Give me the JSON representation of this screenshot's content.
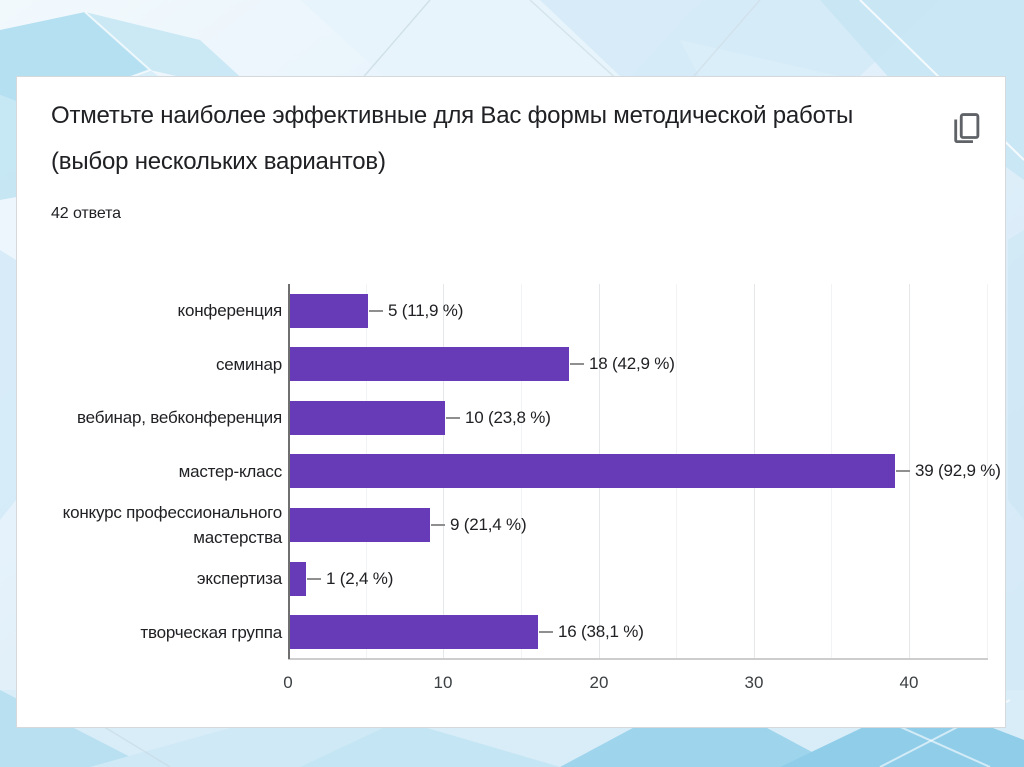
{
  "card": {
    "title": "Отметьте наиболее эффективные для Вас формы методической работы (выбор нескольких вариантов)",
    "responses_label": "42 ответа",
    "copy_icon": "content-copy-icon"
  },
  "chart_data": {
    "type": "bar",
    "orientation": "horizontal",
    "title": "Отметьте наиболее эффективные для Вас формы методической работы (выбор нескольких вариантов)",
    "subtitle": "42 ответа",
    "categories": [
      "конференция",
      "семинар",
      "вебинар, вебконференция",
      "мастер-класс",
      "конкурс профессионального мастерства",
      "экспертиза",
      "творческая группа"
    ],
    "values": [
      5,
      18,
      10,
      39,
      9,
      1,
      16
    ],
    "value_labels": [
      "5 (11,9 %)",
      "18 (42,9 %)",
      "10 (23,8 %)",
      "39 (92,9 %)",
      "9 (21,4 %)",
      "1 (2,4 %)",
      "16 (38,1 %)"
    ],
    "xlabel": "",
    "ylabel": "",
    "x_ticks": [
      0,
      10,
      20,
      30,
      40
    ],
    "xlim": [
      0,
      45
    ],
    "grid": true,
    "legend": "none",
    "bar_color": "#673ab7"
  },
  "colors": {
    "bar": "#673ab7",
    "card_border": "#d6d9db",
    "text": "#202124",
    "axis_line": "#6f6f6f",
    "icon": "#5f6368"
  }
}
